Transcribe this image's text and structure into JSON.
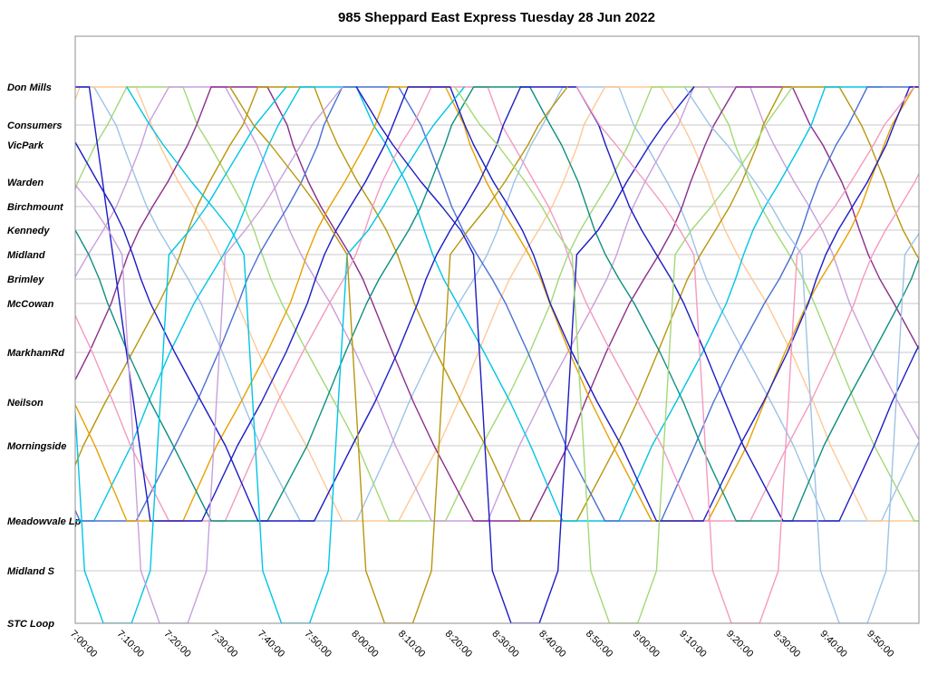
{
  "title": "985 Sheppard East Express Tuesday 28 Jun 2022",
  "colors": {
    "background": "#ffffff",
    "grid": "#c9c9c9",
    "border": "#8f8f8f",
    "text": "#000000"
  },
  "chart_data": {
    "type": "line",
    "variant": "time-distance (Marey) transit diagram",
    "title": "985 Sheppard East Express Tuesday 28 Jun 2022",
    "legend": "none",
    "grid": "horizontal station lines only",
    "x_axis": {
      "unit": "minutes after 7:00:00",
      "range": [
        0,
        180
      ],
      "tick_interval_min": 10,
      "tick_labels": [
        "7:00:00",
        "7:10:00",
        "7:20:00",
        "7:30:00",
        "7:40:00",
        "7:50:00",
        "8:00:00",
        "8:10:00",
        "8:20:00",
        "8:30:00",
        "8:40:00",
        "8:50:00",
        "9:00:00",
        "9:10:00",
        "9:20:00",
        "9:30:00",
        "9:40:00",
        "9:50:00"
      ]
    },
    "y_axis": {
      "description": "stations along route, top = Don Mills, lower separate band = STC branch",
      "stations": [
        {
          "name": "Don Mills",
          "dist": 56
        },
        {
          "name": "Consumers",
          "dist": 98
        },
        {
          "name": "VicPark",
          "dist": 120
        },
        {
          "name": "Warden",
          "dist": 161
        },
        {
          "name": "Birchmount",
          "dist": 188
        },
        {
          "name": "Kennedy",
          "dist": 214
        },
        {
          "name": "Midland",
          "dist": 241
        },
        {
          "name": "Brimley",
          "dist": 268
        },
        {
          "name": "McCowan",
          "dist": 295
        },
        {
          "name": "MarkhamRd",
          "dist": 349
        },
        {
          "name": "Neilson",
          "dist": 404
        },
        {
          "name": "Morningside",
          "dist": 452
        },
        {
          "name": "Meadowvale Lp",
          "dist": 535
        },
        {
          "name": "Midland S",
          "dist": 590
        },
        {
          "name": "STC Loop",
          "dist": 648
        }
      ]
    },
    "series": [
      {
        "name": "veh-01",
        "color": "#9dc3e6",
        "points": [
          [
            -52,
            12
          ],
          [
            -8,
            0
          ],
          [
            4,
            0
          ],
          [
            48,
            12
          ],
          [
            60,
            12
          ],
          [
            104,
            0
          ],
          [
            116,
            0
          ],
          [
            160,
            12
          ],
          [
            172,
            12
          ],
          [
            216,
            0
          ]
        ]
      },
      {
        "name": "veh-02",
        "color": "#ffc896",
        "points": [
          [
            -43,
            12
          ],
          [
            1,
            0
          ],
          [
            13,
            0
          ],
          [
            57,
            12
          ],
          [
            69,
            12
          ],
          [
            113,
            0
          ],
          [
            125,
            0
          ],
          [
            169,
            12
          ],
          [
            181,
            12
          ],
          [
            225,
            0
          ]
        ]
      },
      {
        "name": "veh-03",
        "color": "#a3d977",
        "points": [
          [
            -33,
            12
          ],
          [
            11,
            0
          ],
          [
            23,
            0
          ],
          [
            67,
            12
          ],
          [
            79,
            12
          ],
          [
            123,
            0
          ],
          [
            135,
            0
          ],
          [
            179,
            12
          ],
          [
            191,
            12
          ]
        ]
      },
      {
        "name": "veh-04",
        "color": "#c9a0dc",
        "points": [
          [
            -24,
            12
          ],
          [
            20,
            0
          ],
          [
            32,
            0
          ],
          [
            76,
            12
          ],
          [
            88,
            12
          ],
          [
            132,
            0
          ],
          [
            144,
            0
          ],
          [
            188,
            12
          ]
        ]
      },
      {
        "name": "veh-05",
        "color": "#8b2e8b",
        "points": [
          [
            -15,
            12
          ],
          [
            29,
            0
          ],
          [
            41,
            0
          ],
          [
            85,
            12
          ],
          [
            97,
            12
          ],
          [
            141,
            0
          ],
          [
            153,
            0
          ],
          [
            197,
            12
          ]
        ]
      },
      {
        "name": "veh-06",
        "color": "#b8960c",
        "points": [
          [
            -5,
            12
          ],
          [
            39,
            0
          ],
          [
            51,
            0
          ],
          [
            95,
            12
          ],
          [
            107,
            12
          ],
          [
            151,
            0
          ],
          [
            163,
            0
          ],
          [
            207,
            12
          ]
        ]
      },
      {
        "name": "veh-07",
        "color": "#00c5e6",
        "points": [
          [
            -52,
            0
          ],
          [
            -8,
            12
          ],
          [
            4,
            12
          ],
          [
            48,
            0
          ],
          [
            60,
            0
          ],
          [
            104,
            12
          ],
          [
            116,
            12
          ],
          [
            160,
            0
          ],
          [
            172,
            0
          ]
        ]
      },
      {
        "name": "veh-08",
        "color": "#4a6fd4",
        "points": [
          [
            -43,
            0
          ],
          [
            1,
            12
          ],
          [
            13,
            12
          ],
          [
            57,
            0
          ],
          [
            69,
            0
          ],
          [
            113,
            12
          ],
          [
            125,
            12
          ],
          [
            169,
            0
          ],
          [
            181,
            0
          ],
          [
            225,
            12
          ]
        ]
      },
      {
        "name": "veh-09",
        "color": "#e8a000",
        "points": [
          [
            -33,
            0
          ],
          [
            11,
            12
          ],
          [
            23,
            12
          ],
          [
            67,
            0
          ],
          [
            79,
            0
          ],
          [
            123,
            12
          ],
          [
            135,
            12
          ],
          [
            179,
            0
          ],
          [
            191,
            0
          ]
        ]
      },
      {
        "name": "veh-10",
        "color": "#f49ac1",
        "points": [
          [
            -24,
            0
          ],
          [
            20,
            12
          ],
          [
            32,
            12
          ],
          [
            76,
            0
          ],
          [
            88,
            0
          ],
          [
            132,
            12
          ],
          [
            144,
            12
          ],
          [
            188,
            0
          ]
        ]
      },
      {
        "name": "veh-11",
        "color": "#0e8f80",
        "points": [
          [
            -15,
            0
          ],
          [
            29,
            12
          ],
          [
            41,
            12
          ],
          [
            85,
            0
          ],
          [
            97,
            0
          ],
          [
            141,
            12
          ],
          [
            153,
            12
          ],
          [
            197,
            0
          ]
        ]
      },
      {
        "name": "veh-12",
        "color": "#1c1cc4",
        "points": [
          [
            -5,
            0
          ],
          [
            39,
            12
          ],
          [
            51,
            12
          ],
          [
            95,
            0
          ],
          [
            107,
            0
          ],
          [
            151,
            12
          ],
          [
            163,
            12
          ],
          [
            207,
            0
          ]
        ]
      },
      {
        "name": "veh-13",
        "color": "#1c1cc4",
        "points": [
          [
            -6,
            0
          ],
          [
            3,
            0
          ],
          [
            16,
            12
          ],
          [
            27,
            12
          ],
          [
            71,
            0
          ],
          [
            80,
            0
          ],
          [
            124,
            12
          ],
          [
            134,
            12
          ],
          [
            178,
            0
          ],
          [
            186,
            0
          ]
        ]
      },
      {
        "name": "stc-01",
        "color": "#00c5e6",
        "points": [
          [
            -27,
            0
          ],
          [
            -2,
            6
          ],
          [
            2,
            13
          ],
          [
            6,
            14
          ],
          [
            12,
            14
          ],
          [
            16,
            13
          ],
          [
            20,
            6
          ],
          [
            45,
            0
          ]
        ]
      },
      {
        "name": "stc-02",
        "color": "#c9a0dc",
        "points": [
          [
            -15,
            0
          ],
          [
            10,
            6
          ],
          [
            14,
            13
          ],
          [
            18,
            14
          ],
          [
            24,
            14
          ],
          [
            28,
            13
          ],
          [
            32,
            6
          ],
          [
            57,
            0
          ]
        ]
      },
      {
        "name": "stc-03",
        "color": "#00c5e6",
        "points": [
          [
            11,
            0
          ],
          [
            36,
            6
          ],
          [
            40,
            13
          ],
          [
            44,
            14
          ],
          [
            50,
            14
          ],
          [
            54,
            13
          ],
          [
            58,
            6
          ],
          [
            83,
            0
          ]
        ]
      },
      {
        "name": "stc-04",
        "color": "#b8960c",
        "points": [
          [
            33,
            0
          ],
          [
            58,
            6
          ],
          [
            62,
            13
          ],
          [
            66,
            14
          ],
          [
            72,
            14
          ],
          [
            76,
            13
          ],
          [
            80,
            6
          ],
          [
            105,
            0
          ]
        ]
      },
      {
        "name": "stc-05",
        "color": "#1c1cc4",
        "points": [
          [
            60,
            0
          ],
          [
            85,
            6
          ],
          [
            89,
            13
          ],
          [
            93,
            14
          ],
          [
            99,
            14
          ],
          [
            103,
            13
          ],
          [
            107,
            6
          ],
          [
            132,
            0
          ]
        ]
      },
      {
        "name": "stc-06",
        "color": "#a3d977",
        "points": [
          [
            81,
            0
          ],
          [
            106,
            6
          ],
          [
            110,
            13
          ],
          [
            114,
            14
          ],
          [
            120,
            14
          ],
          [
            124,
            13
          ],
          [
            128,
            6
          ],
          [
            153,
            0
          ]
        ]
      },
      {
        "name": "stc-07",
        "color": "#f49ac1",
        "points": [
          [
            107,
            0
          ],
          [
            132,
            6
          ],
          [
            136,
            13
          ],
          [
            140,
            14
          ],
          [
            146,
            14
          ],
          [
            150,
            13
          ],
          [
            154,
            6
          ],
          [
            179,
            0
          ]
        ]
      },
      {
        "name": "stc-08",
        "color": "#9dc3e6",
        "points": [
          [
            130,
            0
          ],
          [
            155,
            6
          ],
          [
            159,
            13
          ],
          [
            163,
            14
          ],
          [
            169,
            14
          ],
          [
            173,
            13
          ],
          [
            177,
            6
          ],
          [
            202,
            0
          ]
        ]
      }
    ]
  }
}
